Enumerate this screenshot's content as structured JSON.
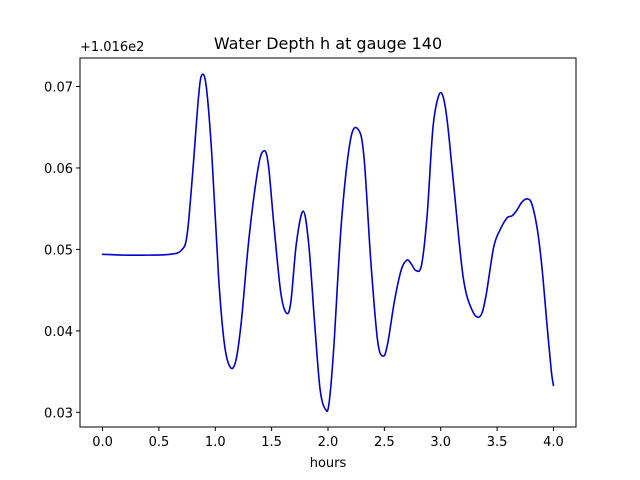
{
  "chart_data": {
    "type": "line",
    "title": "Water Depth h at gauge 140",
    "xlabel": "hours",
    "ylabel": "",
    "offset_label": "+1.016e2",
    "xlim": [
      -0.2,
      4.2
    ],
    "ylim": [
      0.0282,
      0.0735
    ],
    "x_ticks": [
      0.0,
      0.5,
      1.0,
      1.5,
      2.0,
      2.5,
      3.0,
      3.5,
      4.0
    ],
    "x_tick_labels": [
      "0.0",
      "0.5",
      "1.0",
      "1.5",
      "2.0",
      "2.5",
      "3.0",
      "3.5",
      "4.0"
    ],
    "y_ticks": [
      0.03,
      0.04,
      0.05,
      0.06,
      0.07
    ],
    "y_tick_labels": [
      "0.03",
      "0.04",
      "0.05",
      "0.06",
      "0.07"
    ],
    "grid": false,
    "series": [
      {
        "color": "#0000cc",
        "x": [
          0.0,
          0.2,
          0.4,
          0.6,
          0.7,
          0.75,
          0.8,
          0.85,
          0.88,
          0.92,
          0.97,
          1.03,
          1.08,
          1.13,
          1.18,
          1.23,
          1.3,
          1.38,
          1.43,
          1.47,
          1.52,
          1.58,
          1.63,
          1.67,
          1.72,
          1.78,
          1.83,
          1.88,
          1.93,
          1.98,
          2.01,
          2.05,
          2.12,
          2.2,
          2.27,
          2.32,
          2.38,
          2.44,
          2.49,
          2.53,
          2.59,
          2.65,
          2.7,
          2.74,
          2.78,
          2.83,
          2.88,
          2.93,
          2.98,
          3.02,
          3.06,
          3.12,
          3.2,
          3.28,
          3.35,
          3.4,
          3.47,
          3.53,
          3.59,
          3.63,
          3.67,
          3.72,
          3.77,
          3.81,
          3.86,
          3.9,
          3.94,
          3.98,
          4.0
        ],
        "y": [
          0.0494,
          0.0493,
          0.0493,
          0.0494,
          0.0499,
          0.0518,
          0.0595,
          0.0685,
          0.0714,
          0.07,
          0.0615,
          0.0465,
          0.0385,
          0.0356,
          0.0362,
          0.041,
          0.0515,
          0.06,
          0.0621,
          0.0605,
          0.053,
          0.0448,
          0.0422,
          0.0435,
          0.0508,
          0.0547,
          0.0505,
          0.0412,
          0.0328,
          0.0303,
          0.0312,
          0.0377,
          0.0535,
          0.0635,
          0.0647,
          0.0612,
          0.0485,
          0.0388,
          0.0369,
          0.0385,
          0.0437,
          0.0475,
          0.0487,
          0.0482,
          0.0474,
          0.0481,
          0.0543,
          0.0648,
          0.0688,
          0.0688,
          0.0655,
          0.0572,
          0.0465,
          0.0425,
          0.0418,
          0.0442,
          0.0503,
          0.0525,
          0.0539,
          0.0541,
          0.0547,
          0.0558,
          0.0562,
          0.0555,
          0.0522,
          0.0475,
          0.0412,
          0.0352,
          0.0333
        ]
      }
    ]
  }
}
